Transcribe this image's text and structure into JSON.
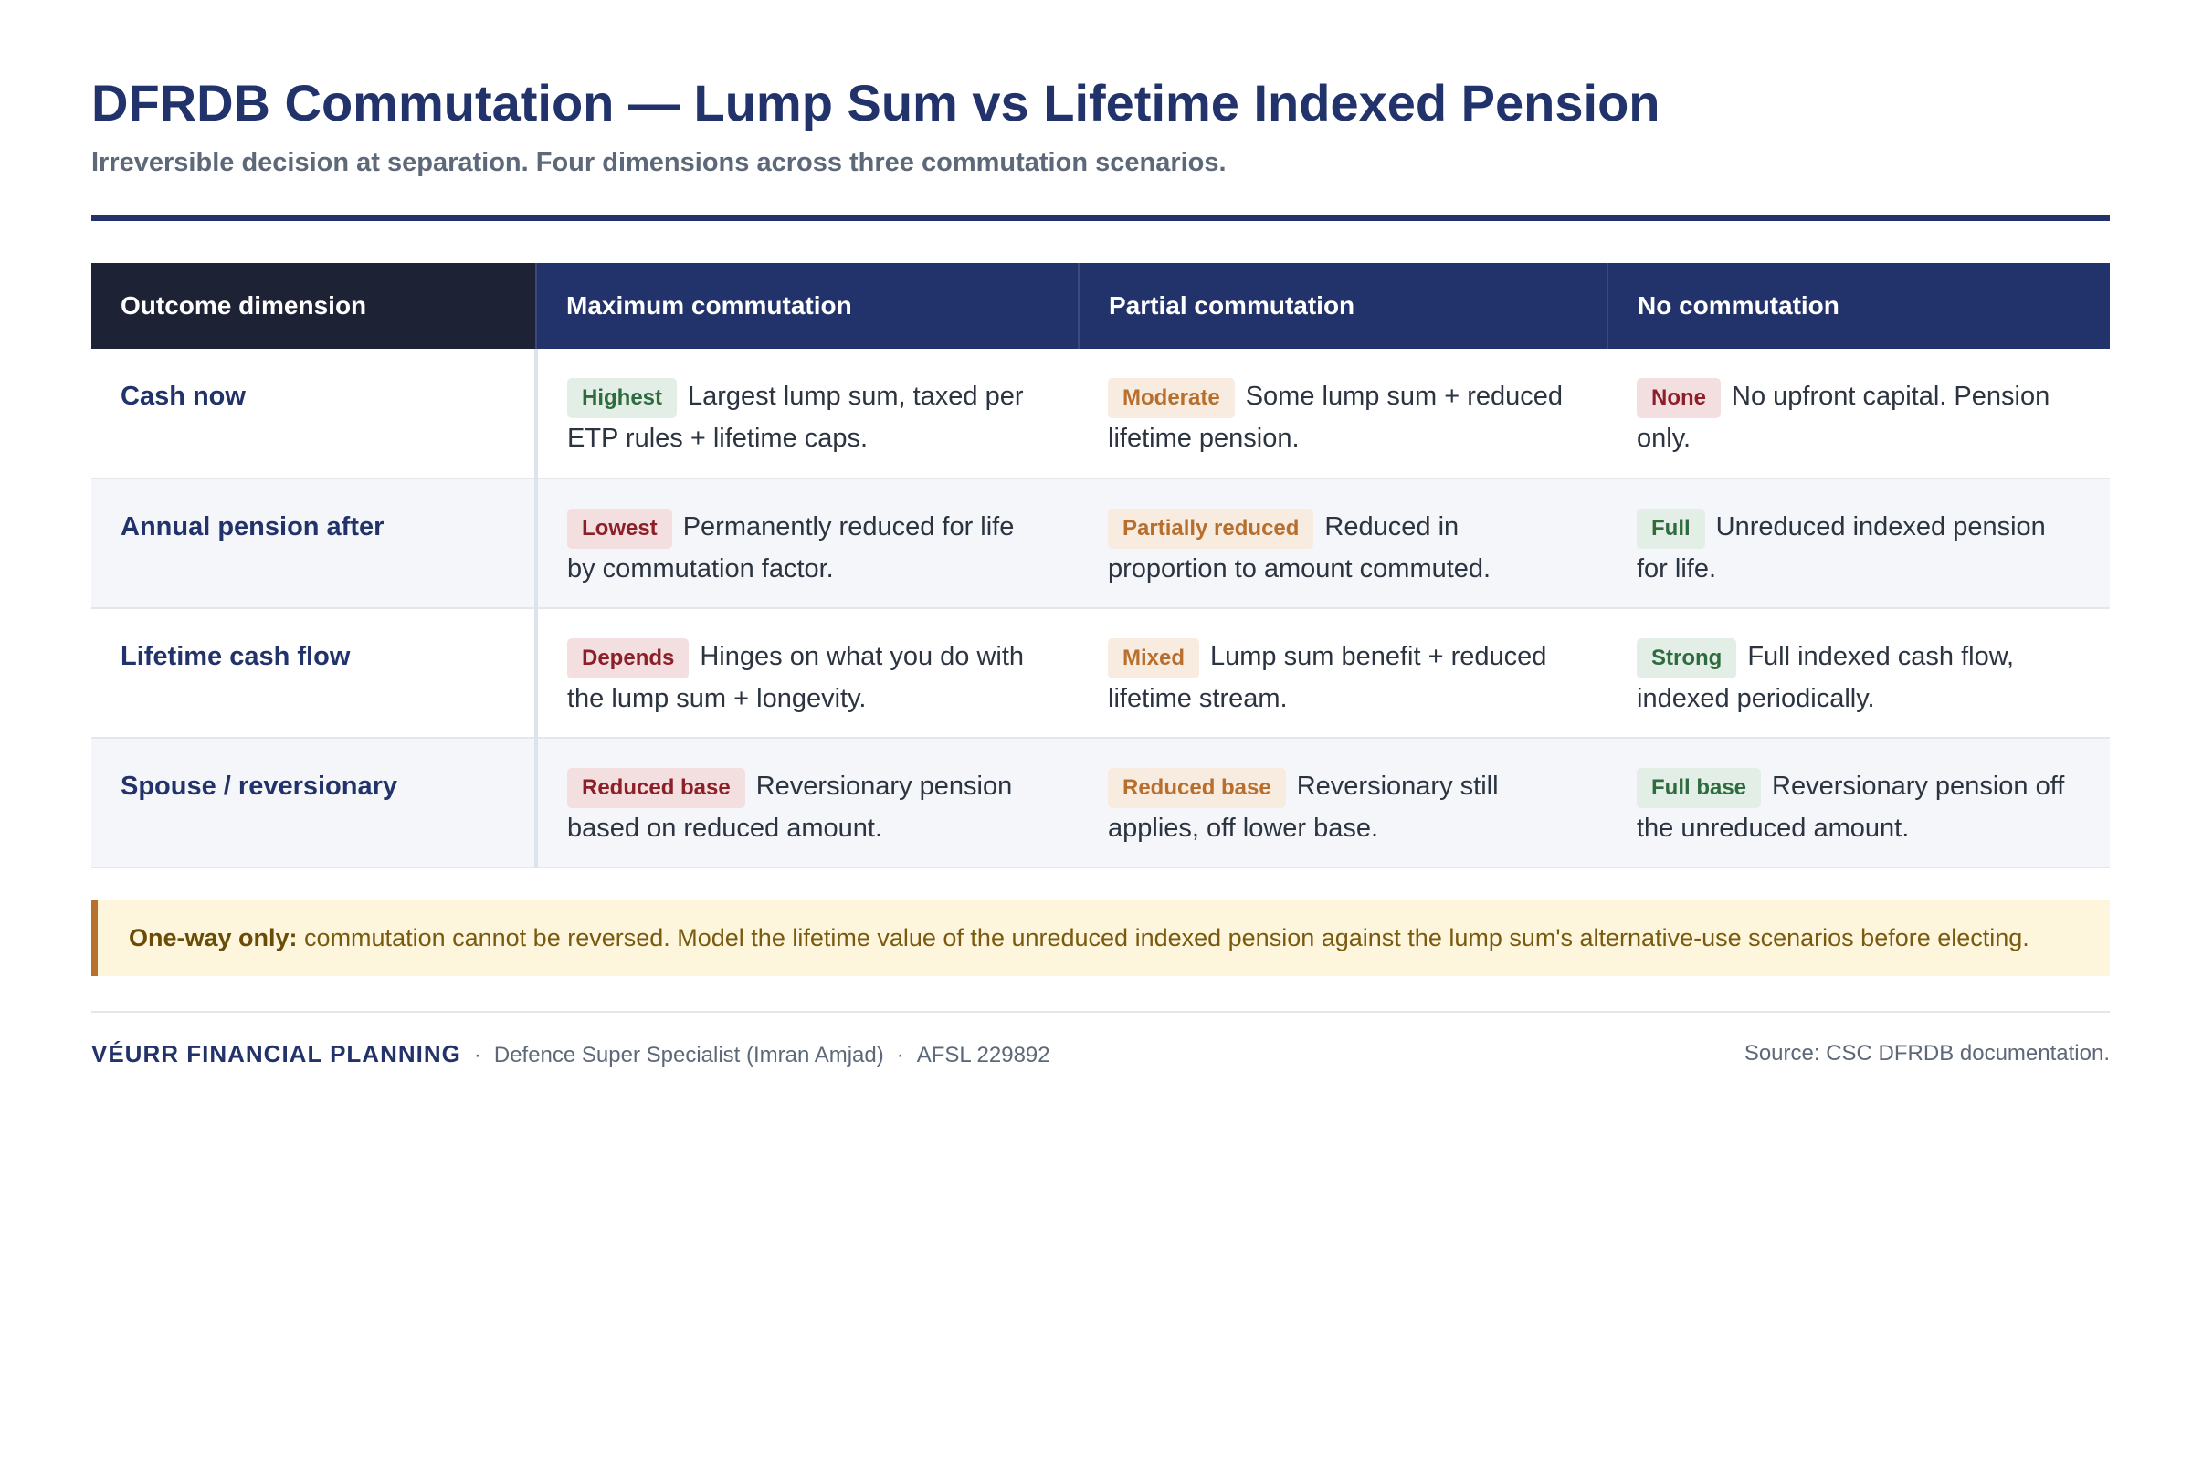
{
  "header": {
    "title": "DFRDB Commutation — Lump Sum vs Lifetime Indexed Pension",
    "subtitle": "Irreversible decision at separation. Four dimensions across three commutation scenarios."
  },
  "table": {
    "columns": [
      "Outcome dimension",
      "Maximum commutation",
      "Partial commutation",
      "No commutation"
    ],
    "rows": [
      {
        "dimension": "Cash now",
        "cells": [
          {
            "badge": "Highest",
            "tone": "green",
            "text": "Largest lump sum, taxed per ETP rules + lifetime caps."
          },
          {
            "badge": "Moderate",
            "tone": "amber",
            "text": "Some lump sum + reduced lifetime pension."
          },
          {
            "badge": "None",
            "tone": "red",
            "text": "No upfront capital. Pension only."
          }
        ]
      },
      {
        "dimension": "Annual pension after",
        "cells": [
          {
            "badge": "Lowest",
            "tone": "red",
            "text": "Permanently reduced for life by commutation factor."
          },
          {
            "badge": "Partially reduced",
            "tone": "amber",
            "text": "Reduced in proportion to amount commuted."
          },
          {
            "badge": "Full",
            "tone": "green",
            "text": "Unreduced indexed pension for life."
          }
        ]
      },
      {
        "dimension": "Lifetime cash flow",
        "cells": [
          {
            "badge": "Depends",
            "tone": "red",
            "text": "Hinges on what you do with the lump sum + longevity."
          },
          {
            "badge": "Mixed",
            "tone": "amber",
            "text": "Lump sum benefit + reduced lifetime stream."
          },
          {
            "badge": "Strong",
            "tone": "green",
            "text": "Full indexed cash flow, indexed periodically."
          }
        ]
      },
      {
        "dimension": "Spouse / reversionary",
        "cells": [
          {
            "badge": "Reduced base",
            "tone": "red",
            "text": "Reversionary pension based on reduced amount."
          },
          {
            "badge": "Reduced base",
            "tone": "amber",
            "text": "Reversionary still applies, off lower base."
          },
          {
            "badge": "Full base",
            "tone": "green",
            "text": "Reversionary pension off the unreduced amount."
          }
        ]
      }
    ]
  },
  "callout": {
    "label": "One-way only:",
    "text": "commutation cannot be reversed. Model the lifetime value of the unreduced indexed pension against the lump sum's alternative-use scenarios before electing."
  },
  "footer": {
    "brand": "VÉURR FINANCIAL PLANNING",
    "details": [
      "Defence Super Specialist (Imran Amjad)",
      "AFSL 229892"
    ],
    "source": "Source: CSC DFRDB documentation."
  }
}
